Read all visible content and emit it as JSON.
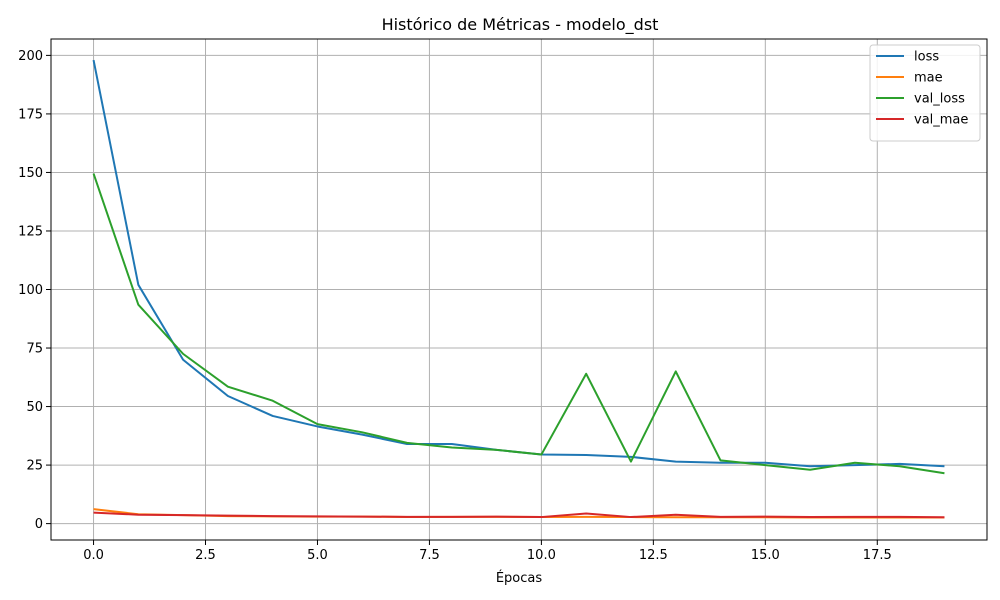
{
  "chart_data": {
    "type": "line",
    "title": "Histórico de Métricas - modelo_dst",
    "xlabel": "Épocas",
    "ylabel": "",
    "xlim": [
      -0.95,
      19.95
    ],
    "ylim": [
      -7,
      207
    ],
    "x_ticks": [
      0.0,
      2.5,
      5.0,
      7.5,
      10.0,
      12.5,
      15.0,
      17.5
    ],
    "x_tick_labels": [
      "0.0",
      "2.5",
      "5.0",
      "7.5",
      "10.0",
      "12.5",
      "15.0",
      "17.5"
    ],
    "y_ticks": [
      0,
      25,
      50,
      75,
      100,
      125,
      150,
      175,
      200
    ],
    "y_tick_labels": [
      "0",
      "25",
      "50",
      "75",
      "100",
      "125",
      "150",
      "175",
      "200"
    ],
    "grid": true,
    "legend_position": "top-right",
    "x": [
      0,
      1,
      2,
      3,
      4,
      5,
      6,
      7,
      8,
      9,
      10,
      11,
      12,
      13,
      14,
      15,
      16,
      17,
      18,
      19
    ],
    "series": [
      {
        "name": "loss",
        "color": "#1f77b4",
        "values": [
          198,
          102,
          70,
          54.5,
          46,
          41.5,
          38,
          34,
          34,
          31.5,
          29.5,
          29.3,
          28.5,
          26.5,
          26,
          26,
          24.5,
          25,
          25.5,
          24.5
        ]
      },
      {
        "name": "mae",
        "color": "#ff7f0e",
        "values": [
          6.2,
          4,
          3.6,
          3.2,
          3.1,
          3,
          3,
          2.8,
          2.9,
          2.9,
          2.8,
          2.9,
          2.8,
          2.7,
          2.7,
          2.7,
          2.6,
          2.6,
          2.6,
          2.6
        ]
      },
      {
        "name": "val_loss",
        "color": "#2ca02c",
        "values": [
          149.5,
          93.5,
          72.5,
          58.5,
          52.5,
          42.5,
          39,
          34.5,
          32.5,
          31.5,
          29.5,
          64,
          26.5,
          65,
          27,
          25,
          23,
          26,
          24.5,
          21.5
        ]
      },
      {
        "name": "val_mae",
        "color": "#d62728",
        "values": [
          4.7,
          3.8,
          3.6,
          3.4,
          3.2,
          3.1,
          3,
          2.9,
          2.9,
          3,
          2.8,
          4.3,
          2.8,
          3.8,
          2.9,
          3,
          2.8,
          2.9,
          2.9,
          2.7
        ]
      }
    ]
  }
}
